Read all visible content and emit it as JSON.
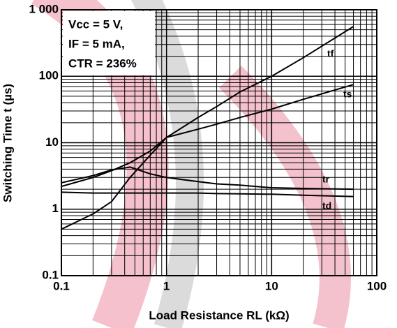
{
  "chart_data": {
    "type": "line",
    "xlog": true,
    "ylog": true,
    "grid": true,
    "xlabel": "Load Resistance  RL (kΩ)",
    "ylabel": "Switching Time  t (µs)",
    "annotations": [
      "Vcc = 5 V,",
      "IF = 5 mA,",
      "CTR = 236%"
    ],
    "x": [
      0.1,
      0.2,
      0.3,
      0.45,
      0.7,
      1,
      2,
      3,
      5,
      10,
      20,
      60
    ],
    "series": [
      {
        "name": "tf",
        "color": "#000000",
        "values": [
          0.5,
          0.85,
          1.3,
          3,
          6.5,
          12,
          24,
          35,
          58,
          100,
          190,
          560
        ]
      },
      {
        "name": "ts",
        "color": "#000000",
        "values": [
          2.2,
          3,
          3.8,
          5,
          7.5,
          12,
          16,
          19,
          24,
          32,
          45,
          75
        ]
      },
      {
        "name": "tr",
        "color": "#000000",
        "values": [
          2.5,
          3.2,
          3.9,
          4.3,
          3.4,
          3.0,
          2.6,
          2.4,
          2.3,
          2.1,
          2.05,
          2.0
        ]
      },
      {
        "name": "td",
        "color": "#000000",
        "values": [
          1.8,
          1.75,
          1.75,
          1.75,
          1.75,
          1.75,
          1.75,
          1.72,
          1.7,
          1.68,
          1.62,
          1.55
        ]
      }
    ],
    "xlim": [
      0.1,
      100
    ],
    "xticks": [
      0.1,
      1,
      10,
      100
    ],
    "ylim": [
      0.1,
      1000
    ],
    "yticks": [
      0.1,
      1,
      10,
      100,
      {
        "value": 1000,
        "label": "1 000"
      }
    ]
  }
}
